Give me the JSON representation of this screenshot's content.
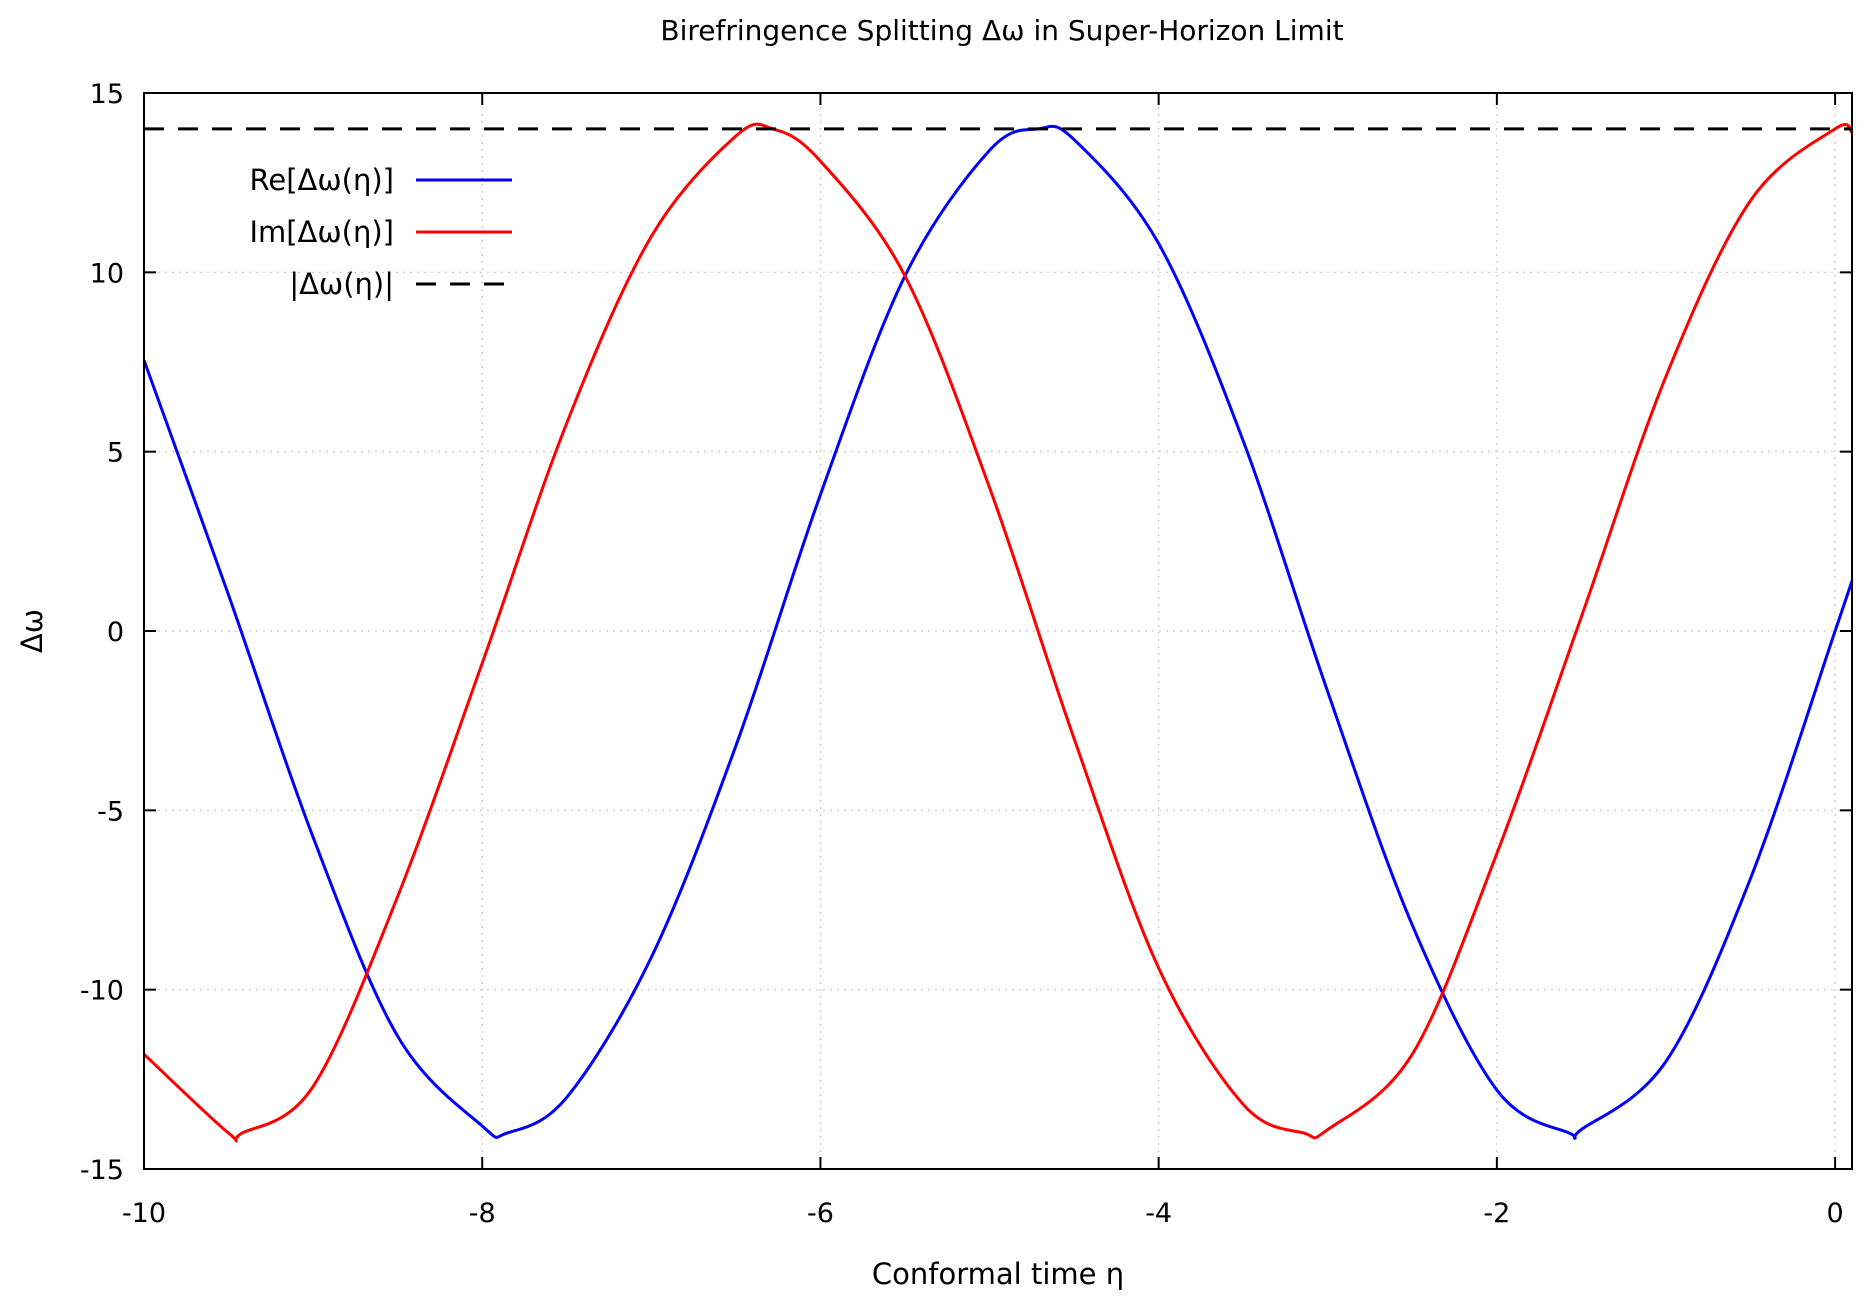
{
  "chart_data": {
    "type": "line",
    "title": "Birefringence Splitting Δω in Super-Horizon Limit",
    "xlabel": "Conformal time η",
    "ylabel": "Δω",
    "xlim": [
      -10,
      0.1
    ],
    "ylim": [
      -15,
      15
    ],
    "xticks": [
      -10,
      -8,
      -6,
      -4,
      -2,
      0
    ],
    "yticks": [
      -15,
      -10,
      -5,
      0,
      5,
      10,
      15
    ],
    "grid": true,
    "legend_position": "top-left",
    "series": [
      {
        "name": "Re[Δω(η)]",
        "color": "#0000ff",
        "style": "solid",
        "x": [
          -10.0,
          -9.5,
          -9.0,
          -8.5,
          -8.0,
          -7.854,
          -7.5,
          -7.0,
          -6.5,
          -6.0,
          -5.5,
          -5.0,
          -4.712,
          -4.5,
          -4.0,
          -3.5,
          -3.0,
          -2.5,
          -2.0,
          -1.571,
          -1.5,
          -1.0,
          -0.5,
          0.0,
          0.1
        ],
        "y": [
          7.55,
          1.0,
          -5.75,
          -11.3,
          -13.8,
          -14.0,
          -13.0,
          -9.1,
          -3.2,
          3.8,
          9.9,
          13.4,
          14.0,
          13.7,
          10.8,
          5.3,
          -1.7,
          -8.2,
          -12.8,
          -14.0,
          -13.9,
          -12.0,
          -6.9,
          0.0,
          1.4
        ]
      },
      {
        "name": "Im[Δω(η)]",
        "color": "#ff0000",
        "style": "solid",
        "x": [
          -10.0,
          -9.5,
          -9.42,
          -9.0,
          -8.5,
          -8.0,
          -7.5,
          -7.0,
          -6.5,
          -6.28,
          -6.0,
          -5.5,
          -5.0,
          -4.5,
          -4.0,
          -3.5,
          -3.14,
          -3.0,
          -2.5,
          -2.0,
          -1.5,
          -1.0,
          -0.5,
          0.0,
          0.1
        ],
        "y": [
          -11.8,
          -14.0,
          -14.0,
          -12.7,
          -7.4,
          -0.9,
          5.8,
          11.0,
          13.8,
          14.0,
          13.1,
          9.9,
          4.0,
          -3.0,
          -9.4,
          -13.2,
          -14.0,
          -13.9,
          -11.8,
          -6.2,
          0.4,
          7.1,
          12.0,
          14.0,
          13.9
        ]
      },
      {
        "name": "|Δω(η)|",
        "color": "#000000",
        "style": "dashed",
        "x": [
          -10.0,
          0.1
        ],
        "y": [
          14.0,
          14.0
        ]
      }
    ]
  }
}
